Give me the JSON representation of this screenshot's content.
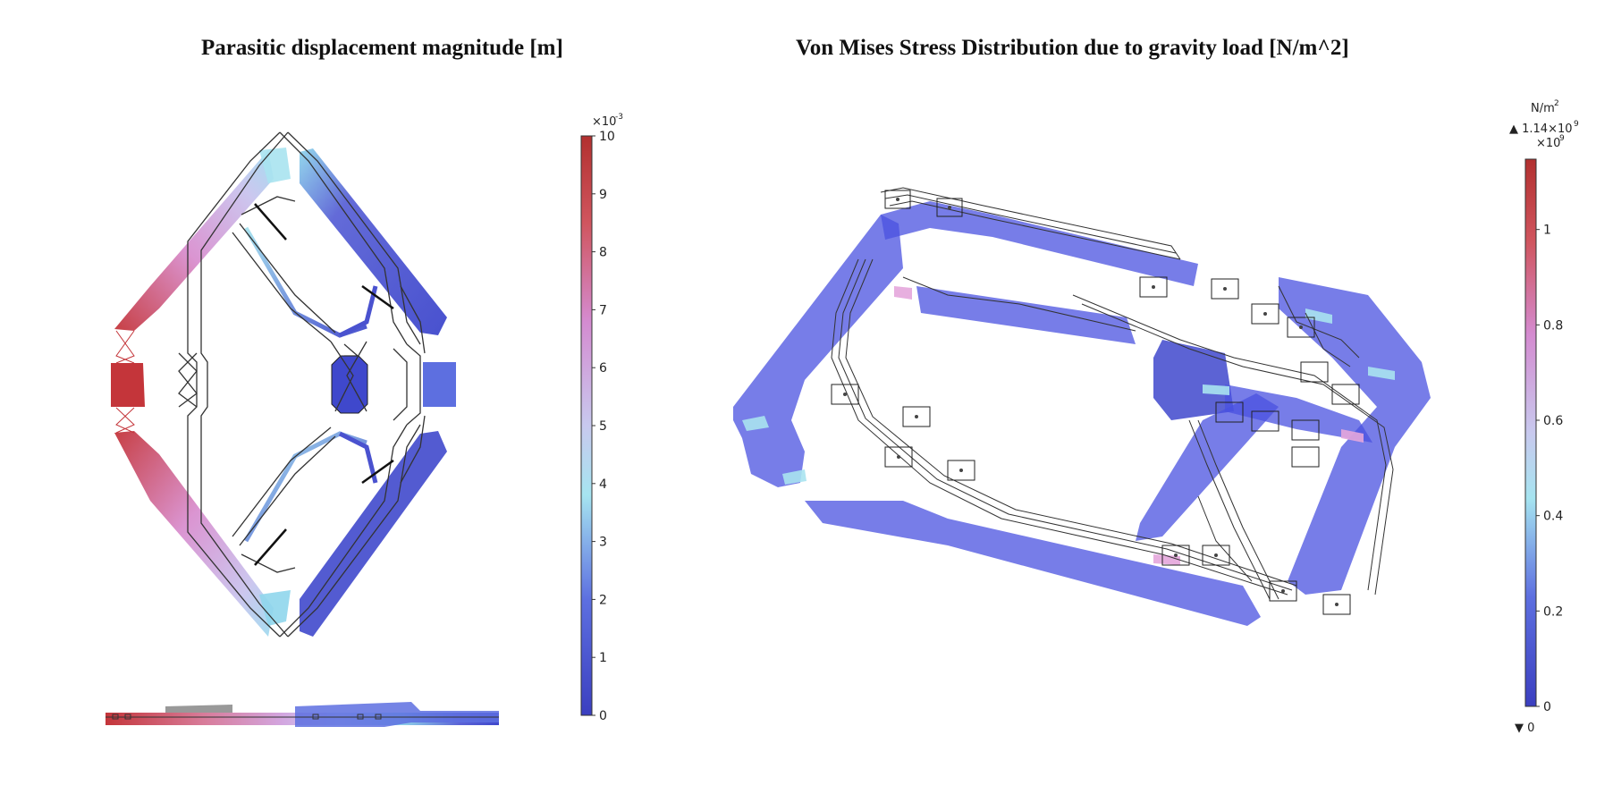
{
  "left_panel": {
    "title": "Parasitic displacement magnitude [m]",
    "colorbar": {
      "multiplier": "×10",
      "multiplier_exp": "-3",
      "min": 0,
      "max": 10,
      "ticks": [
        "0",
        "1",
        "2",
        "3",
        "4",
        "5",
        "6",
        "7",
        "8",
        "9",
        "10"
      ]
    }
  },
  "right_panel": {
    "title": "Von Mises Stress Distribution due to gravity load [N/m^2]",
    "colorbar": {
      "unit": "N/m",
      "unit_exp": "2",
      "max_marker": "▲ 1.14×10",
      "max_marker_exp": "9",
      "multiplier": "×10",
      "multiplier_exp": "9",
      "min_marker": "▼ 0",
      "ticks": [
        "0",
        "0.2",
        "0.4",
        "0.6",
        "0.8",
        "1"
      ]
    }
  },
  "colors": {
    "blue": "#3f48cc",
    "light_blue": "#a9e3ef",
    "lavender": "#c9b3e6",
    "pink": "#d98fcf",
    "red": "#c4353a",
    "wire": "#333333"
  }
}
